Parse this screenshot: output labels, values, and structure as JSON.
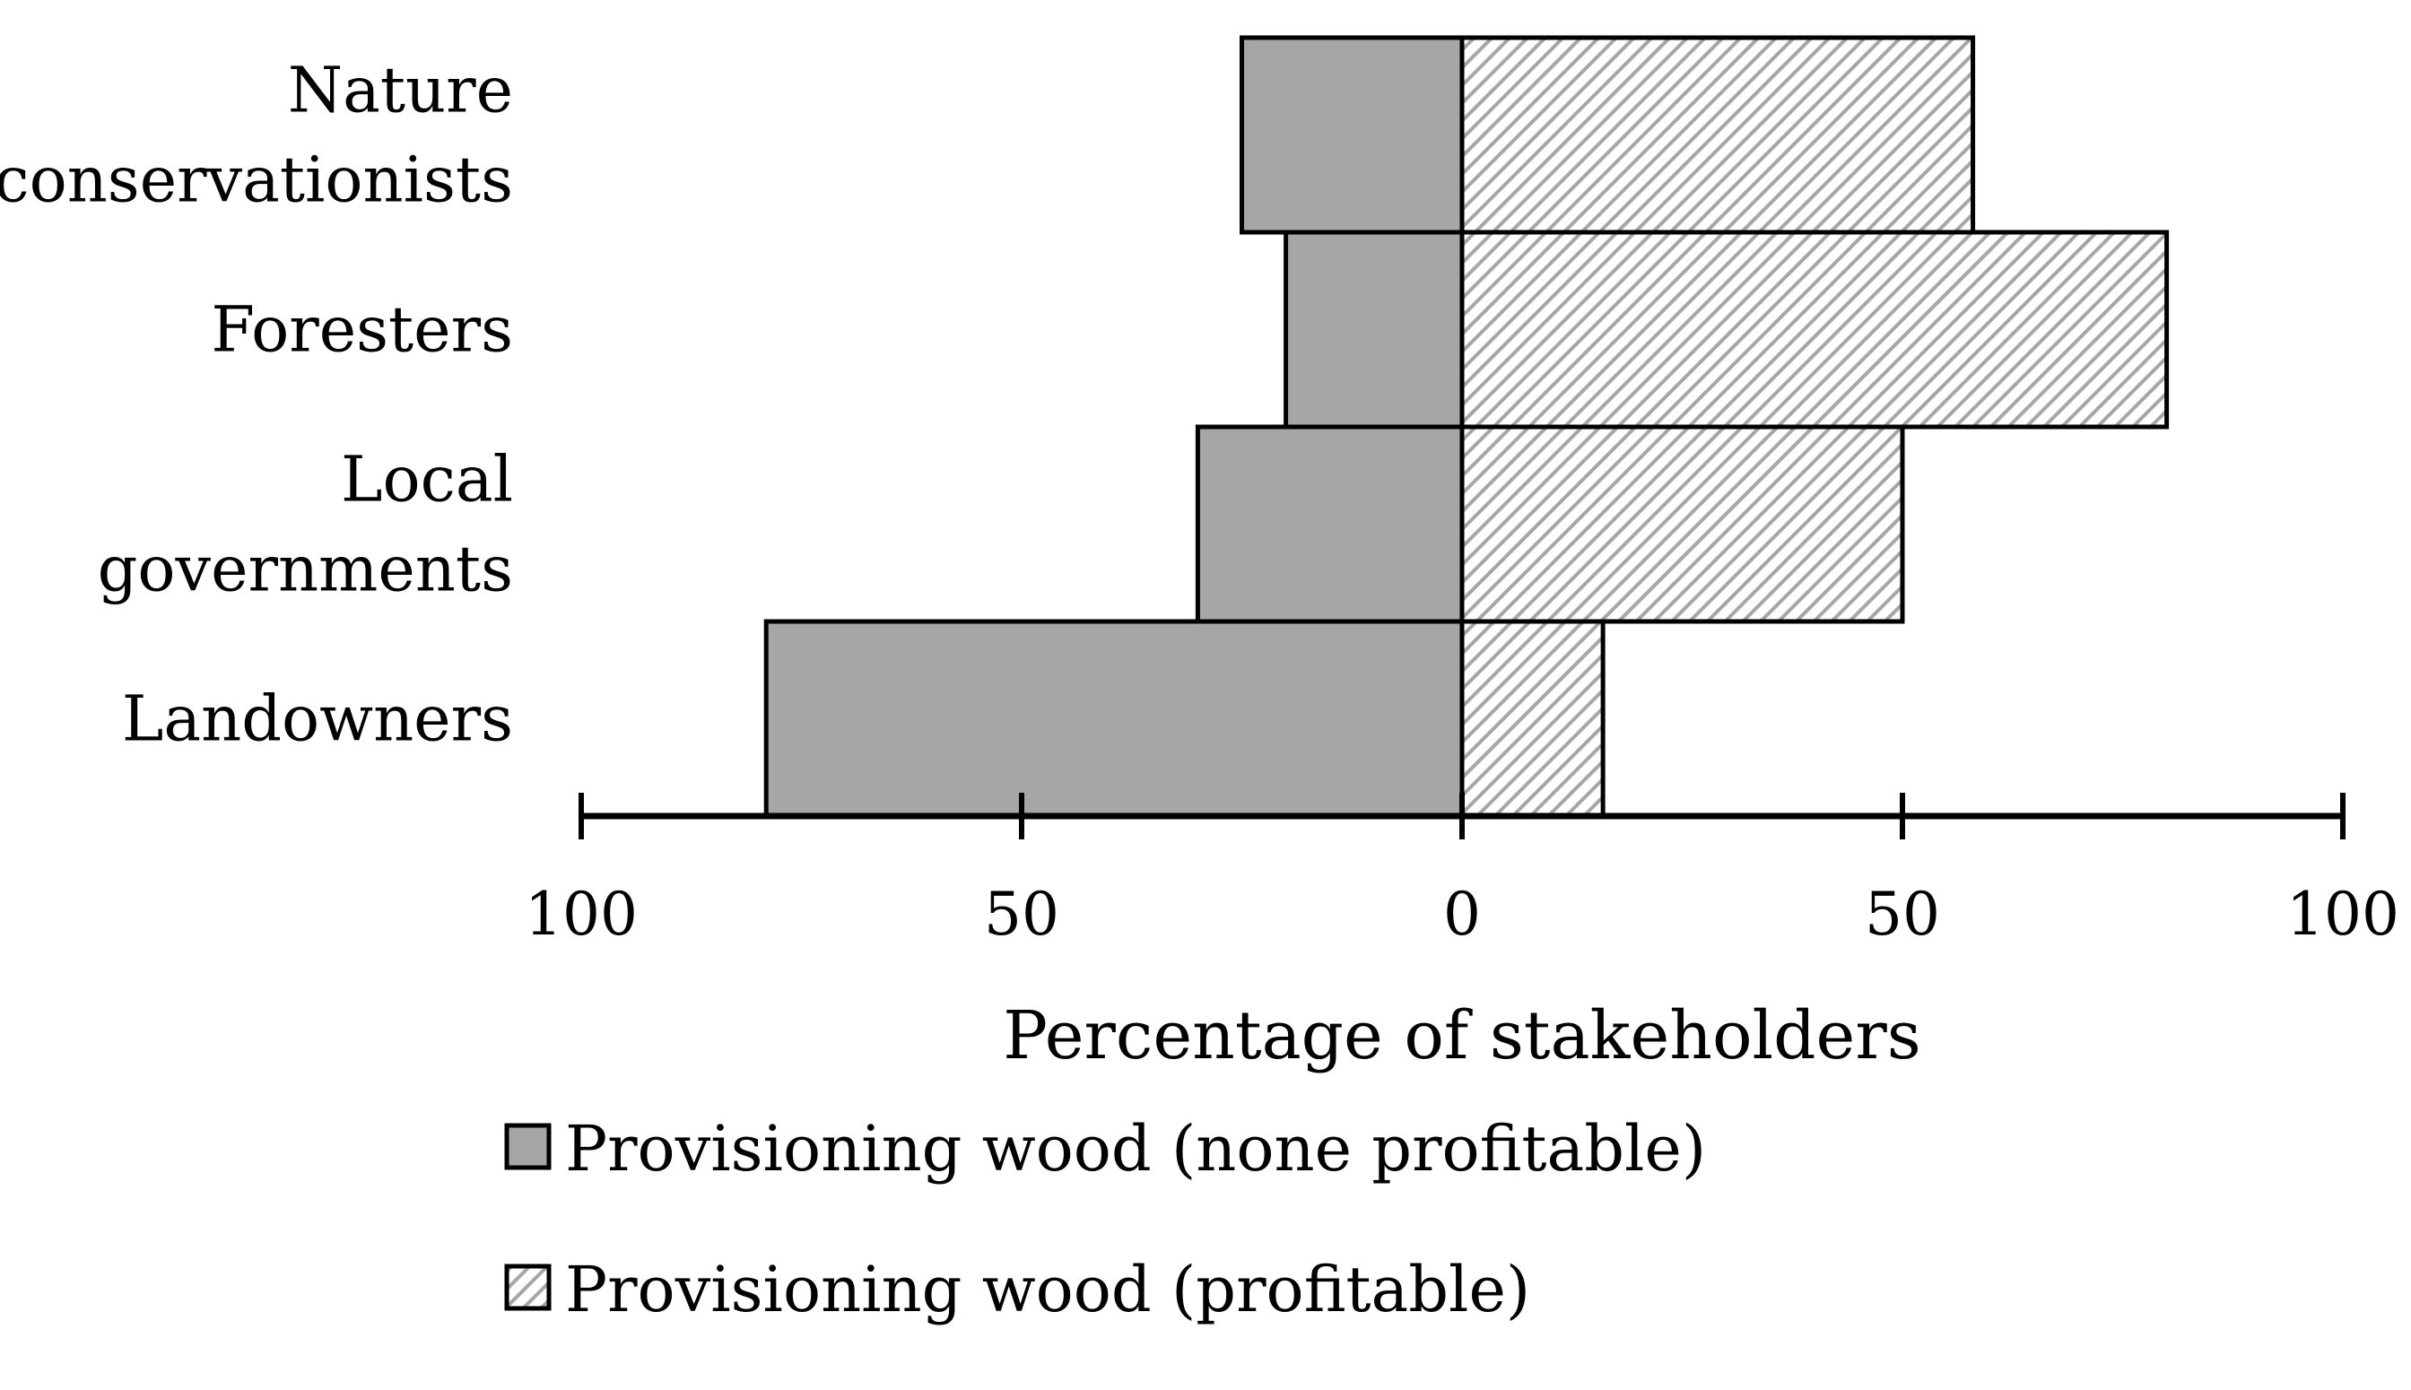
{
  "chart_data": {
    "type": "bar",
    "orientation": "horizontal-diverging",
    "categories": [
      "Nature conservationists",
      "Foresters",
      "Local governments",
      "Landowners"
    ],
    "category_label_lines": [
      [
        "Nature",
        "conservationists"
      ],
      [
        "Foresters"
      ],
      [
        "Local",
        "governments"
      ],
      [
        "Landowners"
      ]
    ],
    "series": [
      {
        "name": "Provisioning wood (none profitable)",
        "direction": "left",
        "color": "#a6a6a6",
        "pattern": "solid",
        "values": [
          25,
          20,
          30,
          79
        ]
      },
      {
        "name": "Provisioning wood (profitable)",
        "direction": "right",
        "color": "#d4d4d4",
        "pattern": "diagonal-hatch",
        "values": [
          58,
          80,
          50,
          16
        ]
      }
    ],
    "xlabel": "Percentage of stakeholders",
    "xlim": [
      -100,
      100
    ],
    "x_ticks": [
      -100,
      -50,
      0,
      50,
      100
    ],
    "x_tick_labels": [
      "100",
      "50",
      "0",
      "50",
      "100"
    ],
    "grid": false,
    "legend_position": "bottom"
  }
}
